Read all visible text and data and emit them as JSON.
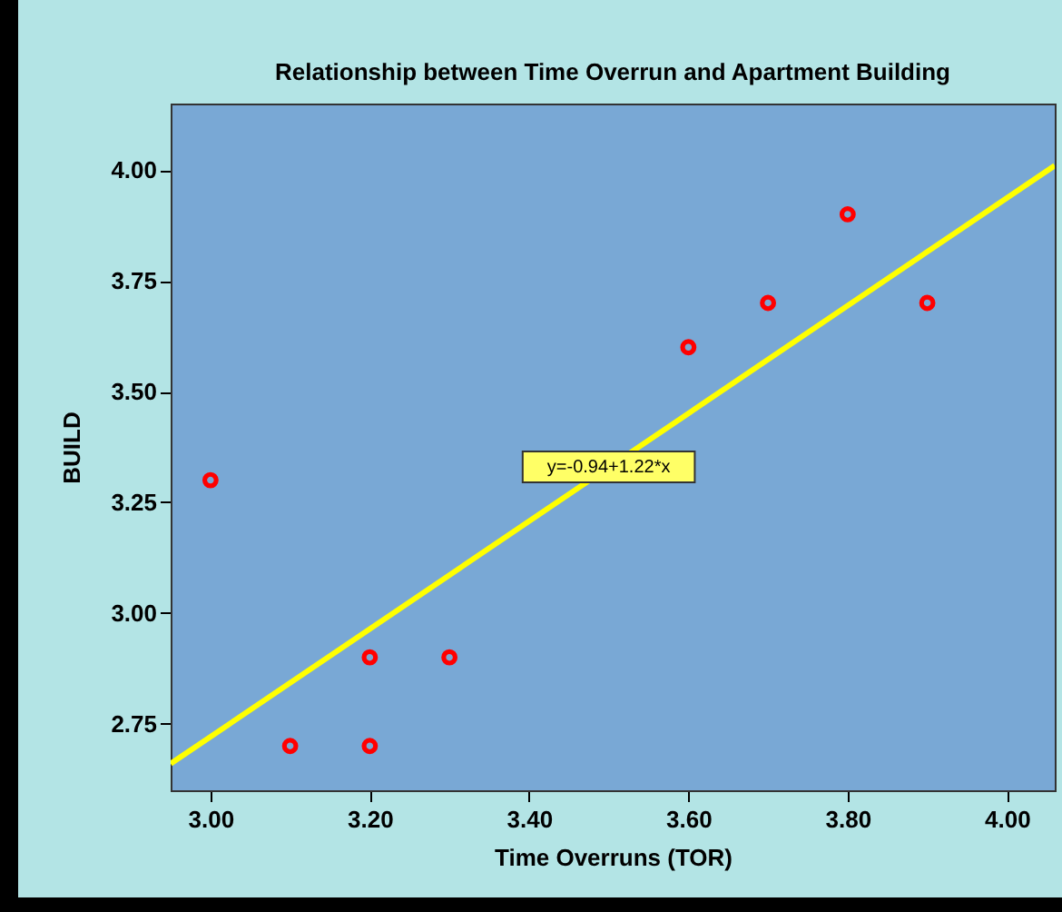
{
  "chart_data": {
    "type": "scatter",
    "title": "Relationship between Time Overrun and Apartment Building",
    "xlabel": "Time  Overruns (TOR)",
    "ylabel": "BUILD",
    "x": [
      3.0,
      3.1,
      3.2,
      3.2,
      3.3,
      3.6,
      3.7,
      3.8,
      3.9
    ],
    "series": [
      {
        "color": "#ff0000",
        "marker": "circle",
        "values": [
          3.3,
          2.7,
          2.9,
          2.7,
          2.9,
          3.6,
          3.7,
          3.9,
          3.7
        ]
      },
      {
        "type": "line",
        "color": "#ffff00",
        "x": [
          2.95,
          4.06
        ],
        "values": [
          2.66,
          4.01
        ]
      }
    ],
    "xlim": [
      2.95,
      4.06
    ],
    "ylim": [
      2.6,
      4.15
    ],
    "xticks": [
      {
        "value": 3,
        "label": "3.00"
      },
      {
        "value": 3.2,
        "label": "3.20"
      },
      {
        "value": 3.4,
        "label": "3.40"
      },
      {
        "value": 3.6,
        "label": "3.60"
      },
      {
        "value": 3.8,
        "label": "3.80"
      },
      {
        "value": 4,
        "label": "4.00"
      }
    ],
    "yticks": [
      {
        "value": 2.75,
        "label": "2.75"
      },
      {
        "value": 3,
        "label": "3.00"
      },
      {
        "value": 3.25,
        "label": "3.25"
      },
      {
        "value": 3.5,
        "label": "3.50"
      },
      {
        "value": 3.75,
        "label": "3.75"
      },
      {
        "value": 4,
        "label": "4.00"
      }
    ],
    "grid": false,
    "annotations": [
      {
        "text": "y=-0.94+1.22*x",
        "x": 3.5,
        "y": 3.33
      }
    ]
  }
}
